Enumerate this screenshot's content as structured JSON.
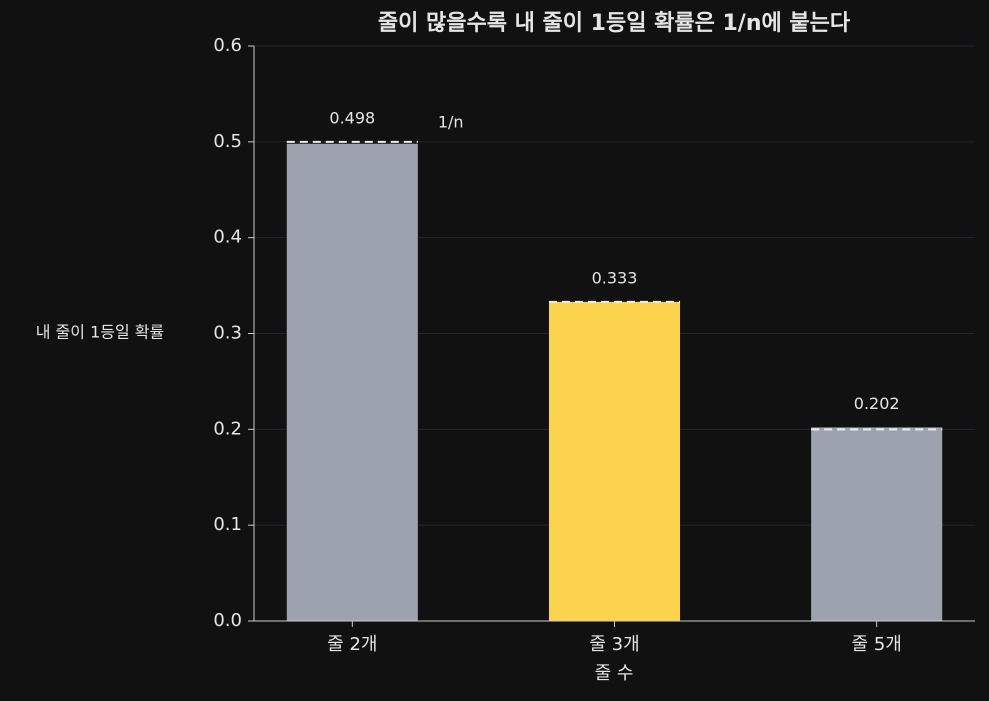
{
  "chart_data": {
    "type": "bar",
    "title": "줄이 많을수록 내 줄이 1등일 확률은 1/n에 붙는다",
    "x_label": "줄 수",
    "y_label": "내 줄이 1등일 확률",
    "categories": [
      "줄 2개",
      "줄 3개",
      "줄 5개"
    ],
    "values": [
      0.498,
      0.333,
      0.202
    ],
    "value_labels": [
      "0.498",
      "0.333",
      "0.202"
    ],
    "colors": [
      "#9ca3af",
      "#fcd34d",
      "#9ca3af"
    ],
    "reference": {
      "label": "1/n",
      "values": [
        0.5,
        0.333,
        0.2
      ]
    },
    "ylim": [
      0,
      0.6
    ],
    "yticks": [
      {
        "value": 0,
        "label": "0.0"
      },
      0.1,
      0.2,
      0.3,
      0.4,
      0.5,
      0.6
    ],
    "grid": true
  }
}
